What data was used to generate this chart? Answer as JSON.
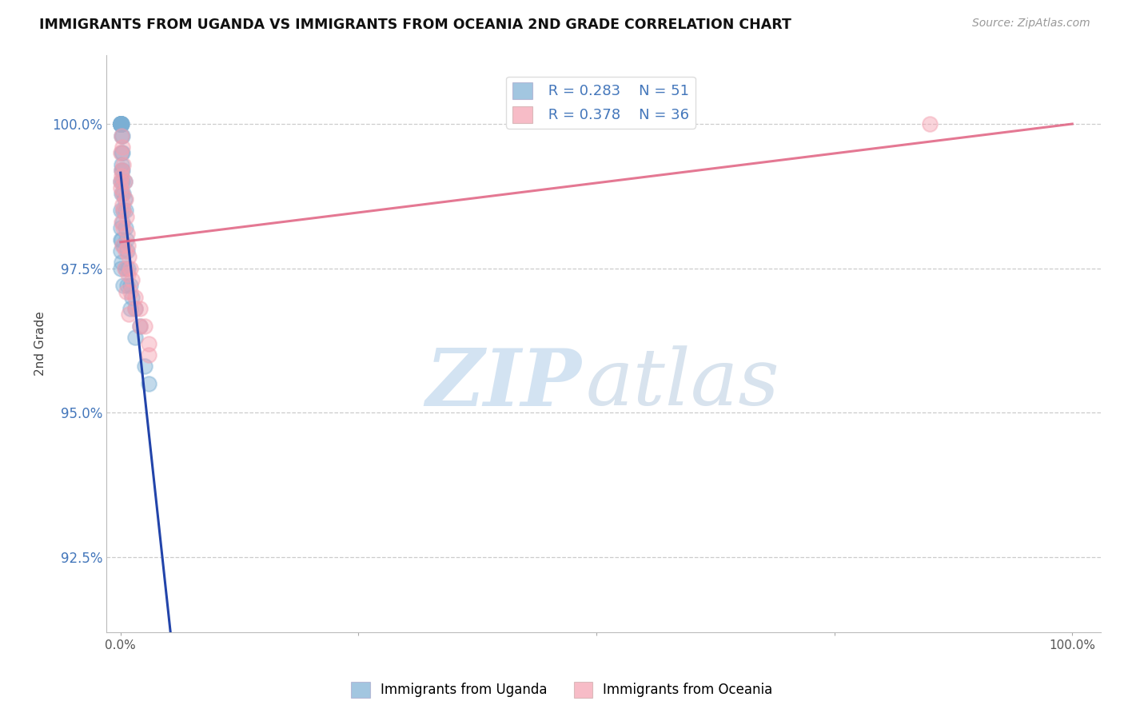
{
  "title": "IMMIGRANTS FROM UGANDA VS IMMIGRANTS FROM OCEANIA 2ND GRADE CORRELATION CHART",
  "source_text": "Source: ZipAtlas.com",
  "ylabel": "2nd Grade",
  "ytick_labels": [
    "92.5%",
    "95.0%",
    "97.5%",
    "100.0%"
  ],
  "ytick_values": [
    92.5,
    95.0,
    97.5,
    100.0
  ],
  "ymin": 91.2,
  "ymax": 101.2,
  "xmin": -1.5,
  "xmax": 103.0,
  "legend_r1": "R = 0.283",
  "legend_n1": "N = 51",
  "legend_r2": "R = 0.378",
  "legend_n2": "N = 36",
  "color_blue": "#7BAFD4",
  "color_pink": "#F4A0B0",
  "color_blue_line": "#2244AA",
  "color_pink_line": "#E06080",
  "color_ytick": "#4477BB",
  "color_xtick": "#555555",
  "uganda_x": [
    0.0,
    0.0,
    0.0,
    0.0,
    0.0,
    0.0,
    0.0,
    0.0,
    0.0,
    0.0,
    0.1,
    0.1,
    0.1,
    0.1,
    0.1,
    0.2,
    0.2,
    0.2,
    0.2,
    0.3,
    0.3,
    0.4,
    0.4,
    0.5,
    0.5,
    0.6,
    0.7,
    0.8,
    1.0,
    1.2,
    1.5,
    2.0,
    0.0,
    0.0,
    0.0,
    0.0,
    0.1,
    0.1,
    0.2,
    0.3,
    0.5,
    0.7,
    1.0,
    1.5,
    2.5,
    3.0,
    0.0,
    0.0,
    0.1,
    0.1,
    0.3
  ],
  "uganda_y": [
    100.0,
    100.0,
    100.0,
    100.0,
    100.0,
    100.0,
    100.0,
    100.0,
    100.0,
    100.0,
    100.0,
    100.0,
    99.8,
    99.5,
    99.3,
    99.8,
    99.5,
    99.2,
    99.0,
    98.8,
    98.5,
    99.0,
    98.7,
    98.5,
    98.2,
    98.0,
    97.8,
    97.5,
    97.2,
    97.0,
    96.8,
    96.5,
    99.0,
    98.5,
    98.0,
    97.5,
    99.2,
    98.8,
    98.3,
    97.9,
    97.5,
    97.2,
    96.8,
    96.3,
    95.8,
    95.5,
    98.2,
    97.8,
    98.0,
    97.6,
    97.2
  ],
  "oceania_x": [
    0.0,
    0.0,
    0.1,
    0.1,
    0.2,
    0.2,
    0.3,
    0.3,
    0.4,
    0.5,
    0.6,
    0.7,
    0.8,
    0.9,
    1.0,
    1.2,
    1.5,
    2.0,
    2.5,
    3.0,
    0.0,
    0.1,
    0.2,
    0.3,
    0.5,
    0.8,
    1.0,
    1.5,
    2.0,
    3.0,
    0.1,
    0.2,
    0.4,
    0.6,
    0.9,
    85.0
  ],
  "oceania_y": [
    99.5,
    99.0,
    99.8,
    99.2,
    99.6,
    98.8,
    99.3,
    98.5,
    99.0,
    98.7,
    98.4,
    98.1,
    97.9,
    97.7,
    97.5,
    97.3,
    97.0,
    96.8,
    96.5,
    96.2,
    98.9,
    99.1,
    98.6,
    98.2,
    97.8,
    97.4,
    97.1,
    96.8,
    96.5,
    96.0,
    98.3,
    97.9,
    97.5,
    97.1,
    96.7,
    100.0
  ]
}
